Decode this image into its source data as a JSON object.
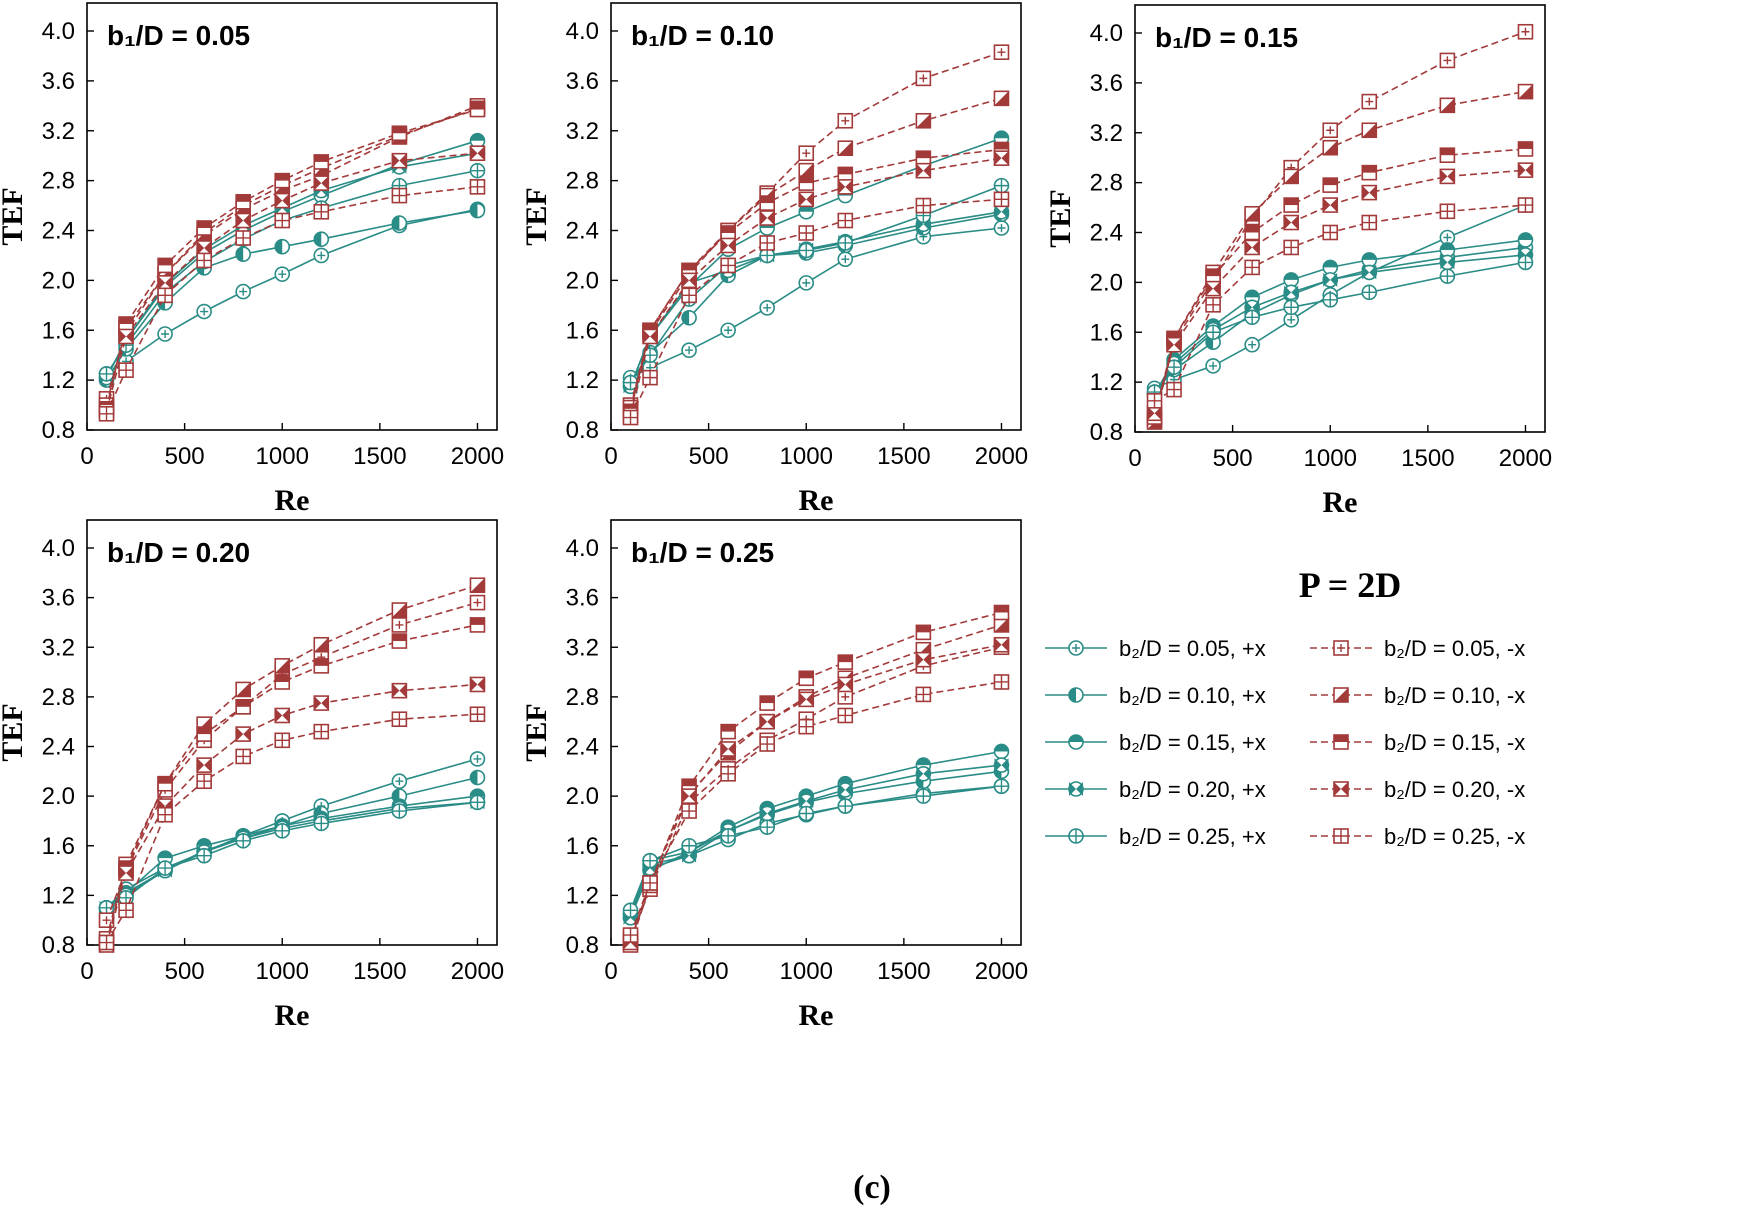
{
  "figure_label": "(c)",
  "legend": {
    "title": "P = 2D",
    "entries": [
      {
        "label": "b₂/D = 0.05, +x",
        "marker": "plus",
        "color": "#2a8c86",
        "dash": false
      },
      {
        "label": "b₂/D = 0.05, -x",
        "marker": "plus",
        "color": "#a33a3a",
        "dash": true
      },
      {
        "label": "b₂/D = 0.10, +x",
        "marker": "half-left",
        "color": "#2a8c86",
        "dash": false
      },
      {
        "label": "b₂/D = 0.10, -x",
        "marker": "half-diag",
        "color": "#a33a3a",
        "dash": true
      },
      {
        "label": "b₂/D = 0.15, +x",
        "marker": "half-top",
        "color": "#2a8c86",
        "dash": false
      },
      {
        "label": "b₂/D = 0.15, -x",
        "marker": "half-top",
        "color": "#a33a3a",
        "dash": true
      },
      {
        "label": "b₂/D = 0.20, +x",
        "marker": "bowtie",
        "color": "#2a8c86",
        "dash": false
      },
      {
        "label": "b₂/D = 0.20, -x",
        "marker": "bowtie",
        "color": "#a33a3a",
        "dash": true
      },
      {
        "label": "b₂/D = 0.25, +x",
        "marker": "cross",
        "color": "#2a8c86",
        "dash": false
      },
      {
        "label": "b₂/D = 0.25, -x",
        "marker": "cross",
        "color": "#a33a3a",
        "dash": true
      }
    ]
  },
  "colors": {
    "plus_x": "#2a8c86",
    "minus_x": "#a33a3a",
    "axis": "#000000"
  },
  "chart_data": [
    {
      "type": "line",
      "title": "b₁/D = 0.05",
      "xlabel": "Re",
      "ylabel": "TEF",
      "xlim": [
        0,
        2100
      ],
      "ylim": [
        0.8,
        4.0
      ],
      "xticks": [
        "0",
        "500",
        "1000",
        "1500",
        "2000"
      ],
      "yticks": [
        "0.8",
        "1.2",
        "1.6",
        "2.0",
        "2.4",
        "2.8",
        "3.2",
        "3.6",
        "4.0"
      ],
      "x": [
        100,
        200,
        400,
        600,
        800,
        1000,
        1200,
        1600,
        2000
      ],
      "series": [
        {
          "name": "b₂/D = 0.05, +x",
          "values": [
            1.25,
            1.35,
            1.57,
            1.75,
            1.91,
            2.05,
            2.2,
            2.44,
            2.57
          ]
        },
        {
          "name": "b₂/D = 0.10, +x",
          "values": [
            1.2,
            1.45,
            1.82,
            2.1,
            2.21,
            2.27,
            2.33,
            2.46,
            2.56
          ]
        },
        {
          "name": "b₂/D = 0.15, +x",
          "values": [
            1.22,
            1.52,
            1.95,
            2.22,
            2.4,
            2.55,
            2.68,
            2.93,
            3.12
          ]
        },
        {
          "name": "b₂/D = 0.20, +x",
          "values": [
            1.22,
            1.52,
            1.97,
            2.25,
            2.44,
            2.58,
            2.72,
            2.91,
            3.02
          ]
        },
        {
          "name": "b₂/D = 0.25, +x",
          "values": [
            1.25,
            1.48,
            1.9,
            2.15,
            2.33,
            2.48,
            2.58,
            2.76,
            2.88
          ]
        },
        {
          "name": "b₂/D = 0.05, -x",
          "values": [
            1.05,
            1.58,
            2.05,
            2.36,
            2.57,
            2.72,
            2.84,
            3.15,
            3.4
          ]
        },
        {
          "name": "b₂/D = 0.10, -x",
          "values": [
            1.0,
            1.62,
            2.05,
            2.38,
            2.6,
            2.76,
            2.9,
            3.16,
            3.38
          ]
        },
        {
          "name": "b₂/D = 0.15, -x",
          "values": [
            0.97,
            1.65,
            2.12,
            2.42,
            2.63,
            2.8,
            2.95,
            3.18,
            3.37
          ]
        },
        {
          "name": "b₂/D = 0.20, -x",
          "values": [
            0.95,
            1.55,
            1.98,
            2.26,
            2.48,
            2.64,
            2.78,
            2.96,
            3.02
          ]
        },
        {
          "name": "b₂/D = 0.25, -x",
          "values": [
            0.93,
            1.28,
            1.88,
            2.16,
            2.34,
            2.48,
            2.55,
            2.68,
            2.75
          ]
        }
      ]
    },
    {
      "type": "line",
      "title": "b₁/D = 0.10",
      "xlabel": "Re",
      "ylabel": "TEF",
      "xlim": [
        0,
        2100
      ],
      "ylim": [
        0.8,
        4.0
      ],
      "xticks": [
        "0",
        "500",
        "1000",
        "1500",
        "2000"
      ],
      "yticks": [
        "0.8",
        "1.2",
        "1.6",
        "2.0",
        "2.4",
        "2.8",
        "3.2",
        "3.6",
        "4.0"
      ],
      "x": [
        100,
        200,
        400,
        600,
        800,
        1000,
        1200,
        1600,
        2000
      ],
      "series": [
        {
          "name": "b₂/D = 0.05, +x",
          "values": [
            1.22,
            1.3,
            1.44,
            1.6,
            1.78,
            1.98,
            2.17,
            2.35,
            2.42
          ]
        },
        {
          "name": "b₂/D = 0.10, +x",
          "values": [
            1.18,
            1.42,
            1.7,
            2.04,
            2.2,
            2.22,
            2.28,
            2.42,
            2.53
          ]
        },
        {
          "name": "b₂/D = 0.15, +x",
          "values": [
            1.15,
            1.55,
            1.95,
            2.25,
            2.42,
            2.55,
            2.68,
            2.92,
            3.14
          ]
        },
        {
          "name": "b₂/D = 0.20, +x",
          "values": [
            1.15,
            1.55,
            1.98,
            2.08,
            2.2,
            2.25,
            2.31,
            2.45,
            2.55
          ]
        },
        {
          "name": "b₂/D = 0.25, +x",
          "values": [
            1.18,
            1.4,
            1.85,
            2.12,
            2.2,
            2.24,
            2.3,
            2.52,
            2.76
          ]
        },
        {
          "name": "b₂/D = 0.05, -x",
          "values": [
            1.0,
            1.58,
            2.05,
            2.4,
            2.7,
            3.02,
            3.28,
            3.62,
            3.83
          ]
        },
        {
          "name": "b₂/D = 0.10, -x",
          "values": [
            0.98,
            1.6,
            2.08,
            2.4,
            2.68,
            2.88,
            3.06,
            3.28,
            3.46
          ]
        },
        {
          "name": "b₂/D = 0.15, -x",
          "values": [
            0.95,
            1.6,
            2.08,
            2.38,
            2.62,
            2.78,
            2.85,
            2.98,
            3.05
          ]
        },
        {
          "name": "b₂/D = 0.20, -x",
          "values": [
            0.92,
            1.55,
            2.0,
            2.28,
            2.5,
            2.65,
            2.75,
            2.88,
            2.98
          ]
        },
        {
          "name": "b₂/D = 0.25, -x",
          "values": [
            0.9,
            1.22,
            1.88,
            2.12,
            2.3,
            2.38,
            2.48,
            2.6,
            2.65
          ]
        }
      ]
    },
    {
      "type": "line",
      "title": "b₁/D = 0.15",
      "xlabel": "Re",
      "ylabel": "TEF",
      "xlim": [
        0,
        2100
      ],
      "ylim": [
        0.8,
        4.0
      ],
      "xticks": [
        "0",
        "500",
        "1000",
        "1500",
        "2000"
      ],
      "yticks": [
        "0.8",
        "1.2",
        "1.6",
        "2.0",
        "2.4",
        "2.8",
        "3.2",
        "3.6",
        "4.0"
      ],
      "x": [
        100,
        200,
        400,
        600,
        800,
        1000,
        1200,
        1600,
        2000
      ],
      "series": [
        {
          "name": "b₂/D = 0.05, +x",
          "values": [
            1.15,
            1.22,
            1.33,
            1.5,
            1.7,
            1.9,
            2.08,
            2.36,
            2.62
          ]
        },
        {
          "name": "b₂/D = 0.10, +x",
          "values": [
            1.12,
            1.3,
            1.52,
            1.75,
            1.9,
            2.02,
            2.1,
            2.2,
            2.28
          ]
        },
        {
          "name": "b₂/D = 0.15, +x",
          "values": [
            1.1,
            1.38,
            1.65,
            1.88,
            2.02,
            2.12,
            2.18,
            2.26,
            2.34
          ]
        },
        {
          "name": "b₂/D = 0.20, +x",
          "values": [
            1.1,
            1.35,
            1.62,
            1.8,
            1.92,
            2.02,
            2.08,
            2.16,
            2.22
          ]
        },
        {
          "name": "b₂/D = 0.25, +x",
          "values": [
            1.12,
            1.32,
            1.6,
            1.72,
            1.8,
            1.86,
            1.92,
            2.05,
            2.16
          ]
        },
        {
          "name": "b₂/D = 0.05, -x",
          "values": [
            0.9,
            1.52,
            2.02,
            2.52,
            2.92,
            3.22,
            3.45,
            3.78,
            4.01
          ]
        },
        {
          "name": "b₂/D = 0.10, -x",
          "values": [
            0.88,
            1.55,
            2.08,
            2.55,
            2.85,
            3.08,
            3.22,
            3.42,
            3.53
          ]
        },
        {
          "name": "b₂/D = 0.15, -x",
          "values": [
            0.92,
            1.55,
            2.05,
            2.4,
            2.62,
            2.78,
            2.88,
            3.02,
            3.07
          ]
        },
        {
          "name": "b₂/D = 0.20, -x",
          "values": [
            0.95,
            1.5,
            1.95,
            2.28,
            2.48,
            2.62,
            2.72,
            2.85,
            2.9
          ]
        },
        {
          "name": "b₂/D = 0.25, -x",
          "values": [
            1.05,
            1.14,
            1.82,
            2.12,
            2.28,
            2.4,
            2.48,
            2.57,
            2.62
          ]
        }
      ]
    },
    {
      "type": "line",
      "title": "b₁/D = 0.20",
      "xlabel": "Re",
      "ylabel": "TEF",
      "xlim": [
        0,
        2100
      ],
      "ylim": [
        0.8,
        4.0
      ],
      "xticks": [
        "0",
        "500",
        "1000",
        "1500",
        "2000"
      ],
      "yticks": [
        "0.8",
        "1.2",
        "1.6",
        "2.0",
        "2.4",
        "2.8",
        "3.2",
        "3.6",
        "4.0"
      ],
      "x": [
        100,
        200,
        400,
        600,
        800,
        1000,
        1200,
        1600,
        2000
      ],
      "series": [
        {
          "name": "b₂/D = 0.05, +x",
          "values": [
            1.1,
            1.25,
            1.42,
            1.55,
            1.68,
            1.8,
            1.92,
            2.12,
            2.3
          ]
        },
        {
          "name": "b₂/D = 0.10, +x",
          "values": [
            1.08,
            1.22,
            1.4,
            1.56,
            1.66,
            1.76,
            1.86,
            2.0,
            2.15
          ]
        },
        {
          "name": "b₂/D = 0.15, +x",
          "values": [
            1.1,
            1.22,
            1.5,
            1.6,
            1.68,
            1.76,
            1.82,
            1.92,
            2.0
          ]
        },
        {
          "name": "b₂/D = 0.20, +x",
          "values": [
            1.1,
            1.2,
            1.4,
            1.55,
            1.66,
            1.74,
            1.8,
            1.9,
            1.95
          ]
        },
        {
          "name": "b₂/D = 0.25, +x",
          "values": [
            1.1,
            1.18,
            1.42,
            1.52,
            1.64,
            1.72,
            1.78,
            1.88,
            1.95
          ]
        },
        {
          "name": "b₂/D = 0.05, -x",
          "values": [
            1.0,
            1.4,
            2.05,
            2.45,
            2.72,
            2.98,
            3.12,
            3.38,
            3.56
          ]
        },
        {
          "name": "b₂/D = 0.10, -x",
          "values": [
            0.85,
            1.45,
            2.1,
            2.58,
            2.86,
            3.05,
            3.22,
            3.5,
            3.7
          ]
        },
        {
          "name": "b₂/D = 0.15, -x",
          "values": [
            0.82,
            1.42,
            2.1,
            2.5,
            2.72,
            2.92,
            3.05,
            3.25,
            3.38
          ]
        },
        {
          "name": "b₂/D = 0.20, -x",
          "values": [
            0.8,
            1.38,
            1.92,
            2.25,
            2.5,
            2.65,
            2.75,
            2.85,
            2.9
          ]
        },
        {
          "name": "b₂/D = 0.25, -x",
          "values": [
            0.82,
            1.08,
            1.85,
            2.12,
            2.32,
            2.45,
            2.52,
            2.62,
            2.66
          ]
        }
      ]
    },
    {
      "type": "line",
      "title": "b₁/D = 0.25",
      "xlabel": "Re",
      "ylabel": "TEF",
      "xlim": [
        0,
        2100
      ],
      "ylim": [
        0.8,
        4.0
      ],
      "xticks": [
        "0",
        "500",
        "1000",
        "1500",
        "2000"
      ],
      "yticks": [
        "0.8",
        "1.2",
        "1.6",
        "2.0",
        "2.4",
        "2.8",
        "3.2",
        "3.6",
        "4.0"
      ],
      "x": [
        100,
        200,
        400,
        600,
        800,
        1000,
        1200,
        1600,
        2000
      ],
      "series": [
        {
          "name": "b₂/D = 0.05, +x",
          "values": [
            1.05,
            1.45,
            1.52,
            1.65,
            1.78,
            1.85,
            1.92,
            2.02,
            2.08
          ]
        },
        {
          "name": "b₂/D = 0.10, +x",
          "values": [
            1.02,
            1.4,
            1.55,
            1.72,
            1.85,
            1.95,
            2.02,
            2.12,
            2.2
          ]
        },
        {
          "name": "b₂/D = 0.15, +x",
          "values": [
            1.05,
            1.48,
            1.55,
            1.75,
            1.9,
            2.0,
            2.1,
            2.25,
            2.36
          ]
        },
        {
          "name": "b₂/D = 0.20, +x",
          "values": [
            1.02,
            1.42,
            1.52,
            1.72,
            1.86,
            1.96,
            2.05,
            2.18,
            2.25
          ]
        },
        {
          "name": "b₂/D = 0.25, +x",
          "values": [
            1.08,
            1.48,
            1.6,
            1.68,
            1.75,
            1.86,
            1.92,
            2.0,
            2.08
          ]
        },
        {
          "name": "b₂/D = 0.05, -x",
          "values": [
            0.85,
            1.25,
            1.95,
            2.22,
            2.45,
            2.62,
            2.8,
            3.05,
            3.2
          ]
        },
        {
          "name": "b₂/D = 0.10, -x",
          "values": [
            0.82,
            1.3,
            2.02,
            2.35,
            2.6,
            2.8,
            2.95,
            3.18,
            3.38
          ]
        },
        {
          "name": "b₂/D = 0.15, -x",
          "values": [
            0.8,
            1.28,
            2.08,
            2.52,
            2.75,
            2.95,
            3.08,
            3.32,
            3.48
          ]
        },
        {
          "name": "b₂/D = 0.20, -x",
          "values": [
            0.82,
            1.3,
            2.0,
            2.38,
            2.6,
            2.78,
            2.9,
            3.1,
            3.22
          ]
        },
        {
          "name": "b₂/D = 0.25, -x",
          "values": [
            0.88,
            1.3,
            1.88,
            2.18,
            2.42,
            2.56,
            2.65,
            2.82,
            2.92
          ]
        }
      ]
    }
  ]
}
